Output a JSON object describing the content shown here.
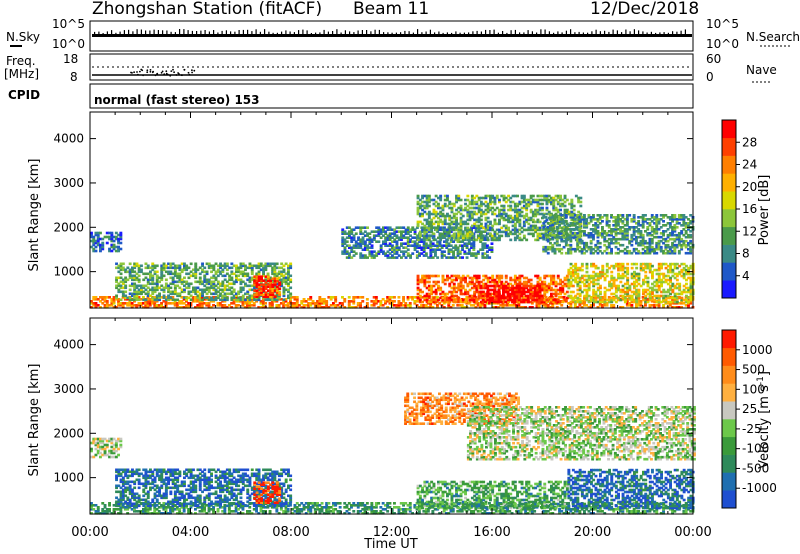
{
  "header": {
    "station": "Zhongshan Station (fitACF)",
    "beam": "Beam 11",
    "date": "12/Dec/2018"
  },
  "status_strip": {
    "left_top": "N.Sky",
    "left_mid": "Freq.",
    "left_unit": "[MHz]",
    "left_cpid": "CPID",
    "left_ticks": [
      "10^5",
      "10^0",
      "18",
      "8"
    ],
    "right_top": "N.Search",
    "right_ticks": [
      "10^5",
      "10^0",
      "60",
      "0"
    ],
    "right_nave": "Nave",
    "mode": "normal (fast stereo) 153"
  },
  "chart_data": [
    {
      "type": "heatmap",
      "name_printed": "Power [dB]",
      "ylabel": "Slant Range [km]",
      "xlabel": "Time UT",
      "ylim": [
        180,
        4600
      ],
      "xlim": [
        0,
        24
      ],
      "y_ticks": [
        "1000",
        "2000",
        "3000",
        "4000"
      ],
      "x_ticks": [
        "00:00",
        "04:00",
        "08:00",
        "12:00",
        "16:00",
        "20:00",
        "00:00"
      ],
      "colorbar": {
        "label": "Power [dB]",
        "ticks": [
          "4",
          "8",
          "12",
          "16",
          "20",
          "24",
          "28"
        ],
        "colors": [
          "#1a1aff",
          "#1f58c8",
          "#3a8a86",
          "#4a9a4a",
          "#8cc63a",
          "#d8d800",
          "#ffb000",
          "#ff7f00",
          "#ff4000",
          "#ff0000"
        ]
      },
      "echo_regions": [
        {
          "t0": 0,
          "t1": 24,
          "r0": 180,
          "r1": 420,
          "level": 0.75
        },
        {
          "t0": 0,
          "t1": 1.2,
          "r0": 1450,
          "r1": 1900,
          "level": 0.2
        },
        {
          "t0": 1,
          "t1": 8,
          "r0": 350,
          "r1": 1200,
          "level": 0.35
        },
        {
          "t0": 6.5,
          "t1": 7.5,
          "r0": 420,
          "r1": 900,
          "level": 0.85
        },
        {
          "t0": 10,
          "t1": 16,
          "r0": 1300,
          "r1": 2000,
          "level": 0.25
        },
        {
          "t0": 13,
          "t1": 19.5,
          "r0": 1700,
          "r1": 2700,
          "level": 0.35
        },
        {
          "t0": 13,
          "t1": 19,
          "r0": 300,
          "r1": 900,
          "level": 0.8
        },
        {
          "t0": 15.5,
          "t1": 18,
          "r0": 300,
          "r1": 700,
          "level": 1.0
        },
        {
          "t0": 18,
          "t1": 24,
          "r0": 1400,
          "r1": 2300,
          "level": 0.3
        },
        {
          "t0": 19,
          "t1": 24,
          "r0": 300,
          "r1": 1200,
          "level": 0.55
        }
      ]
    },
    {
      "type": "heatmap",
      "name_printed": "Velocity [m s-1]",
      "ylabel": "Slant Range [km]",
      "xlabel": "Time UT",
      "ylim": [
        180,
        4600
      ],
      "xlim": [
        0,
        24
      ],
      "y_ticks": [
        "1000",
        "2000",
        "3000",
        "4000"
      ],
      "x_ticks": [
        "00:00",
        "04:00",
        "08:00",
        "12:00",
        "16:00",
        "20:00",
        "00:00"
      ],
      "colorbar": {
        "label": "Velocity",
        "unit": "[m s",
        "unit_sup": "-1",
        "unit_close": "]",
        "ticks": [
          "1000",
          "500",
          "100",
          "25",
          "-25",
          "-100",
          "-500",
          "-1000"
        ],
        "colors": [
          "#1f4fd0",
          "#1f6fb0",
          "#2e8a5a",
          "#3a9a3a",
          "#6cc84a",
          "#c8c8c0",
          "#ffb040",
          "#ff8c1a",
          "#ff5a00",
          "#ff1a00"
        ]
      },
      "echo_regions": [
        {
          "t0": 0,
          "t1": 24,
          "r0": 180,
          "r1": 420,
          "level": 0.3
        },
        {
          "t0": 0,
          "t1": 1.2,
          "r0": 1450,
          "r1": 1900,
          "level": 0.5
        },
        {
          "t0": 1,
          "t1": 8,
          "r0": 350,
          "r1": 1200,
          "level": 0.15
        },
        {
          "t0": 6.5,
          "t1": 7.5,
          "r0": 420,
          "r1": 900,
          "level": 0.9
        },
        {
          "t0": 12.5,
          "t1": 17,
          "r0": 2200,
          "r1": 2900,
          "level": 0.75
        },
        {
          "t0": 15,
          "t1": 24,
          "r0": 1400,
          "r1": 2600,
          "level": 0.5
        },
        {
          "t0": 13,
          "t1": 19,
          "r0": 300,
          "r1": 900,
          "level": 0.35
        },
        {
          "t0": 19,
          "t1": 24,
          "r0": 300,
          "r1": 1200,
          "level": 0.15
        }
      ]
    }
  ]
}
